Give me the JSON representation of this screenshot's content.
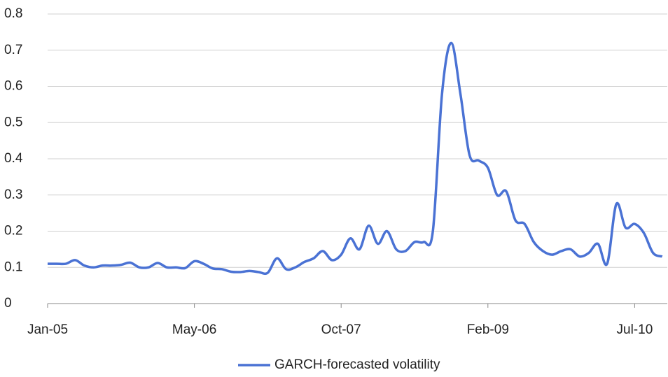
{
  "chart_data": {
    "type": "line",
    "categories": [
      "Jan-05",
      null,
      null,
      null,
      null,
      null,
      null,
      null,
      null,
      null,
      null,
      null,
      null,
      null,
      null,
      null,
      "May-06",
      null,
      null,
      null,
      null,
      null,
      null,
      null,
      null,
      null,
      null,
      null,
      null,
      null,
      null,
      null,
      "Oct-07",
      null,
      null,
      null,
      null,
      null,
      null,
      null,
      null,
      null,
      null,
      null,
      null,
      null,
      null,
      null,
      "Feb-09",
      null,
      null,
      null,
      null,
      null,
      null,
      null,
      null,
      null,
      null,
      null,
      null,
      null,
      null,
      null,
      "Jul-10",
      null,
      null,
      null
    ],
    "series": [
      {
        "name": "GARCH-forecasted volatility",
        "color": "#4a72d4",
        "values": [
          0.11,
          0.11,
          0.11,
          0.12,
          0.105,
          0.1,
          0.105,
          0.105,
          0.107,
          0.113,
          0.1,
          0.1,
          0.112,
          0.1,
          0.1,
          0.098,
          0.117,
          0.11,
          0.097,
          0.095,
          0.088,
          0.087,
          0.09,
          0.087,
          0.085,
          0.125,
          0.095,
          0.1,
          0.115,
          0.125,
          0.145,
          0.12,
          0.135,
          0.18,
          0.15,
          0.215,
          0.165,
          0.2,
          0.15,
          0.145,
          0.17,
          0.17,
          0.2,
          0.58,
          0.72,
          0.58,
          0.41,
          0.395,
          0.375,
          0.3,
          0.31,
          0.23,
          0.22,
          0.17,
          0.145,
          0.135,
          0.145,
          0.15,
          0.13,
          0.14,
          0.165,
          0.11,
          0.275,
          0.21,
          0.22,
          0.195,
          0.14,
          0.13
        ]
      }
    ],
    "ylim": [
      0,
      0.8
    ],
    "yticks": [
      0,
      0.1,
      0.2,
      0.3,
      0.4,
      0.5,
      0.6,
      0.7,
      0.8
    ],
    "grid": true,
    "legend": "bottom"
  }
}
